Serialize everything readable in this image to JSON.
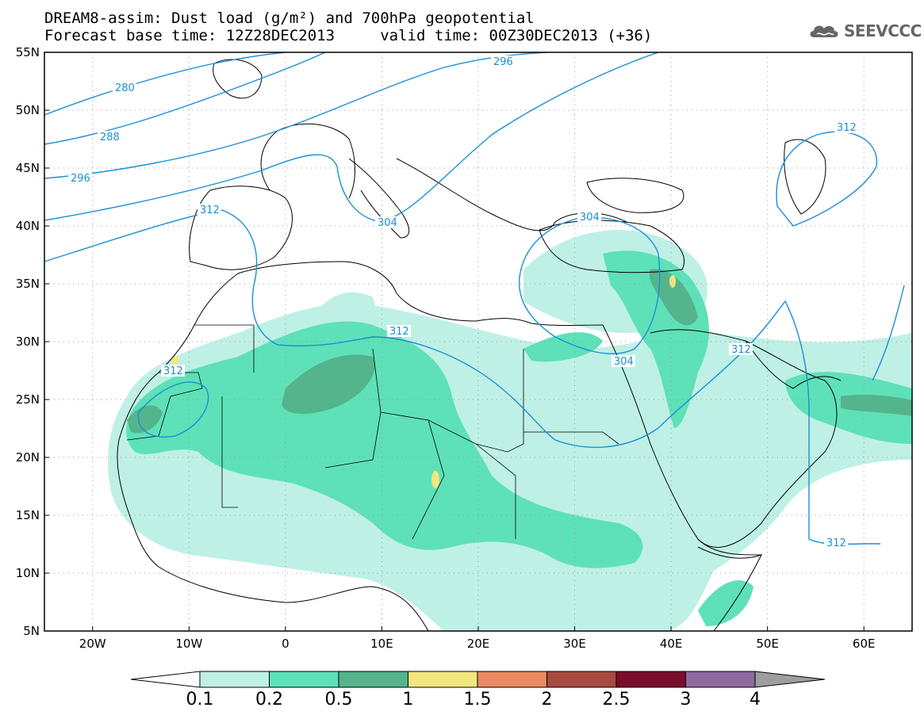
{
  "title": {
    "line1": "DREAM8-assim: Dust load (g/m²) and 700hPa geopotential",
    "line2": "Forecast base time: 12Z28DEC2013     valid time: 00Z30DEC2013 (+36)"
  },
  "logo": {
    "text": "SEEVCCC",
    "icon": "cloud-icon"
  },
  "axes": {
    "y_ticks": [
      "55N",
      "50N",
      "45N",
      "40N",
      "35N",
      "30N",
      "25N",
      "20N",
      "15N",
      "10N",
      "5N"
    ],
    "x_ticks": [
      "20W",
      "10W",
      "0",
      "10E",
      "20E",
      "30E",
      "40E",
      "50E",
      "60E"
    ]
  },
  "contour_labels": [
    "280",
    "288",
    "296",
    "296",
    "304",
    "304",
    "304",
    "312",
    "312",
    "312",
    "312",
    "312",
    "312"
  ],
  "colorbar": {
    "labels": [
      "0.1",
      "0.2",
      "0.5",
      "1",
      "1.5",
      "2",
      "2.5",
      "3",
      "4"
    ],
    "colors": [
      "#bff0e6",
      "#5ee1b8",
      "#54b48c",
      "#f2e67c",
      "#e98a62",
      "#a84a3f",
      "#7a0c2c",
      "#8e6aa0"
    ],
    "over_color": "#9e9e9e",
    "under_color": "#ffffff"
  },
  "chart_data": {
    "type": "heatmap",
    "field": "Dust load (g/m²)",
    "overlay": "700hPa geopotential",
    "lon_range": [
      -25,
      65
    ],
    "lat_range": [
      5,
      55
    ],
    "levels": [
      0.1,
      0.2,
      0.5,
      1,
      1.5,
      2,
      2.5,
      3,
      4
    ],
    "contour_values": [
      280,
      288,
      296,
      304,
      312
    ]
  }
}
